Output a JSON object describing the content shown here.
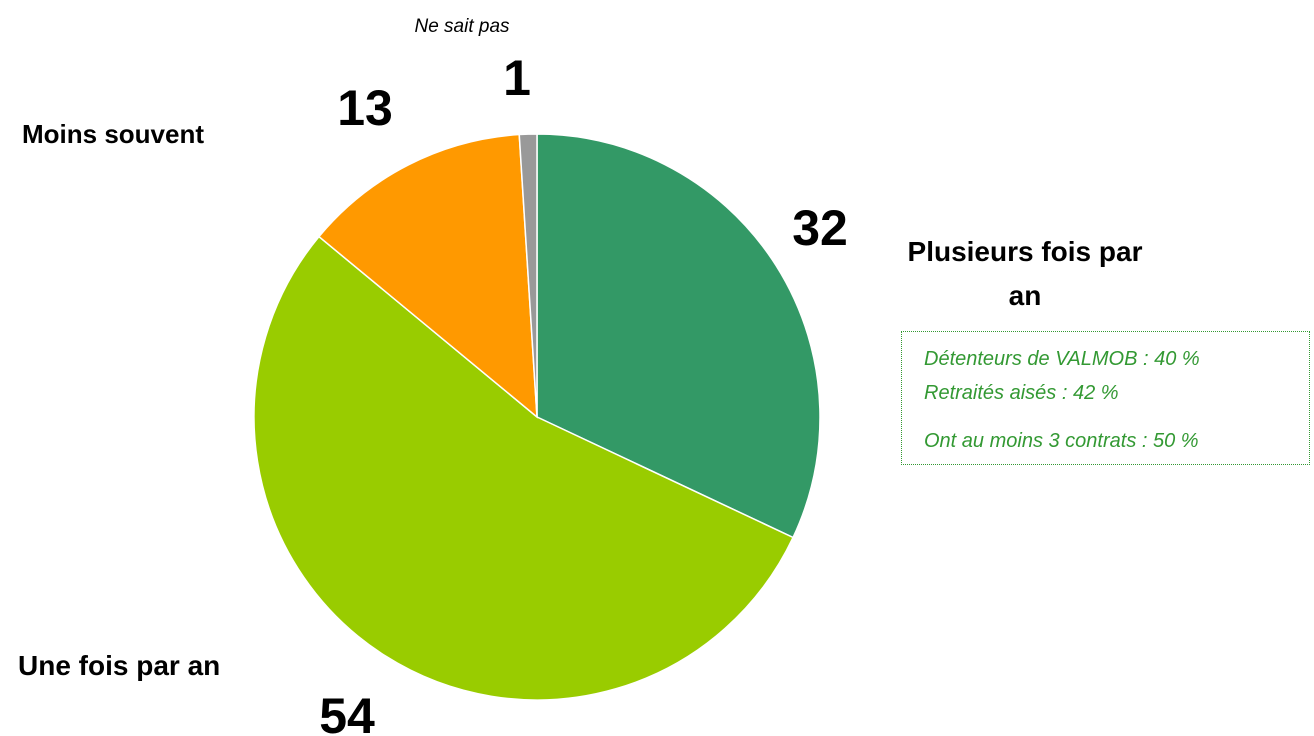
{
  "chart_data": {
    "type": "pie",
    "categories": [
      "Plusieurs fois par an",
      "Une fois par an",
      "Moins souvent",
      "Ne sait pas"
    ],
    "values": [
      32,
      54,
      13,
      1
    ],
    "colors": [
      "#339966",
      "#99cc00",
      "#ff9900",
      "#999999"
    ],
    "annotations": [
      "Détenteurs de VALMOB : 40 %",
      "Retraités aisés : 42 %",
      "Ont au moins 3 contrats : 50 %"
    ]
  }
}
